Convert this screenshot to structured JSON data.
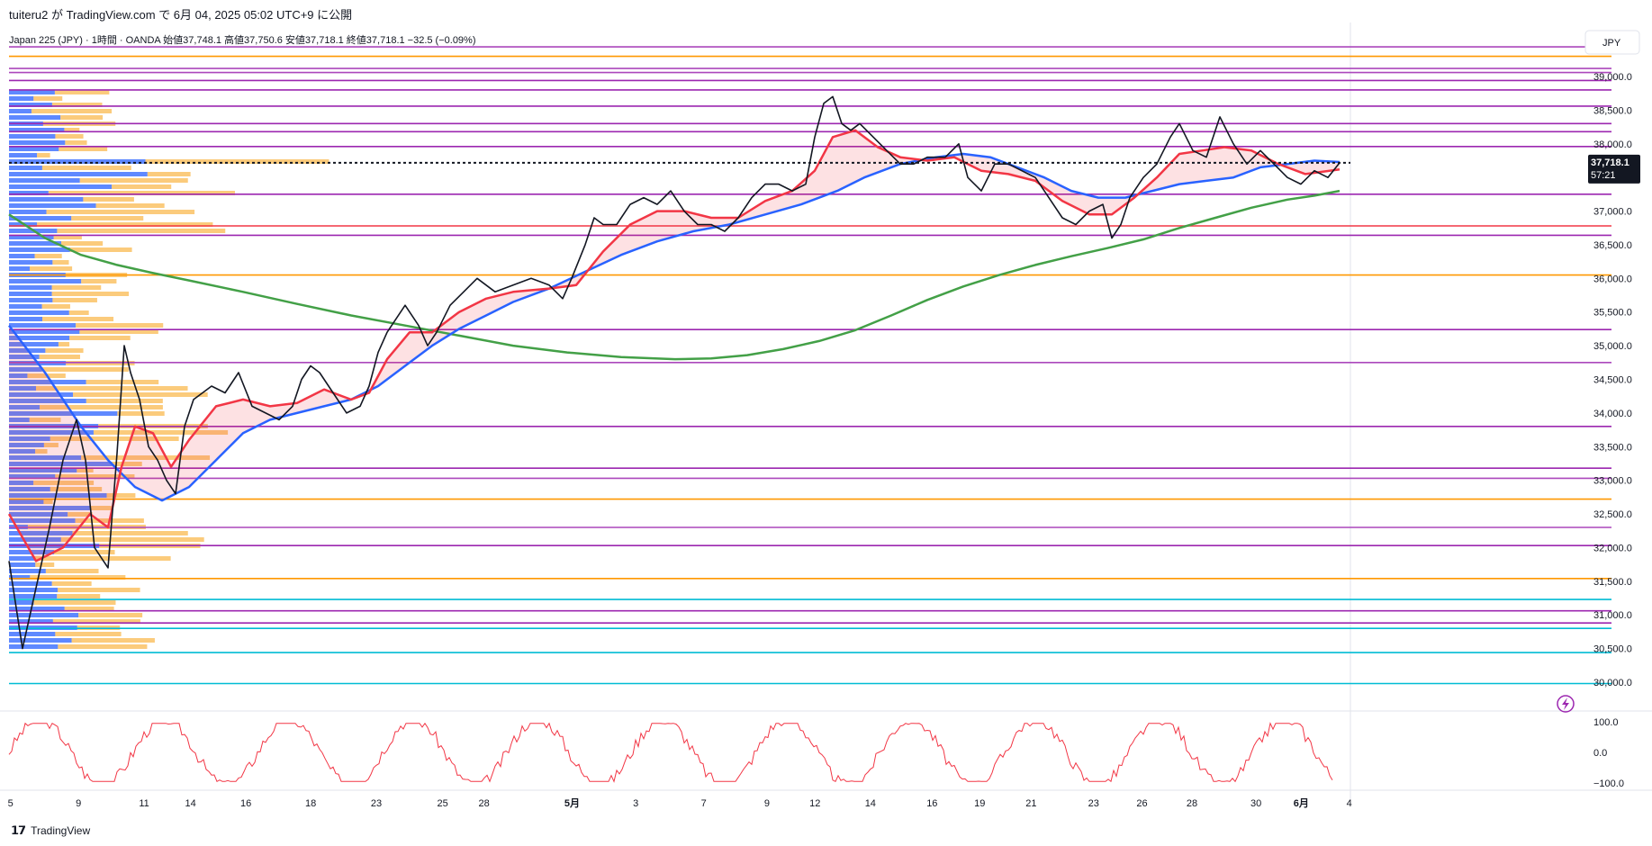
{
  "header": {
    "publish_line": "tuiteru2 が TradingView.com で 6月 04, 2025 05:02 UTC+9 に公開"
  },
  "legend": {
    "line": "Japan 225 (JPY) · 1時間 · OANDA  始値37,748.1  高値37,750.6  安値37,718.1  終値37,718.1  −32.5 (−0.09%)"
  },
  "axis": {
    "currency": "JPY",
    "price_ticks": [
      "39,000.0",
      "38,500.0",
      "38,000.0",
      "37,500.0",
      "37,000.0",
      "36,500.0",
      "36,000.0",
      "35,500.0",
      "35,000.0",
      "34,500.0",
      "34,000.0",
      "33,500.0",
      "33,000.0",
      "32,500.0",
      "32,000.0",
      "31,500.0",
      "31,000.0",
      "30,500.0",
      "30,000.0"
    ],
    "osc_ticks": [
      "100.0",
      "0.0",
      "−100.0"
    ],
    "time_ticks": [
      "5",
      "9",
      "11",
      "14",
      "16",
      "18",
      "23",
      "25",
      "28",
      "5月",
      "3",
      "7",
      "9",
      "12",
      "14",
      "16",
      "19",
      "21",
      "23",
      "26",
      "28",
      "30",
      "6月",
      "4"
    ],
    "current_price_label": "37,718.1",
    "countdown_label": "57:21"
  },
  "footer": {
    "logo_text": "TradingView"
  },
  "colors": {
    "price_line": "#131722",
    "ema_fast": "#f23645",
    "ema_mid": "#2962ff",
    "sma_long": "#43a047",
    "volume_profile_up": "#2962ff",
    "volume_profile_down": "#f9a825",
    "hline_purple": "#9c27b0",
    "hline_orange": "#ff9800",
    "hline_cyan": "#00bcd4",
    "hline_red": "#f23645",
    "oscillator": "#f23645"
  },
  "chart_data": {
    "type": "line",
    "title": "Japan 225 (JPY) · 1時間 · OANDA",
    "y_axis_range": [
      29750,
      39500
    ],
    "oscillator_range": [
      -100,
      100
    ],
    "horizontal_levels": [
      {
        "price": 39440,
        "color": "#ab47bc"
      },
      {
        "price": 39300,
        "color": "#ff9800"
      },
      {
        "price": 39120,
        "color": "#ab47bc"
      },
      {
        "price": 39060,
        "color": "#ab47bc"
      },
      {
        "price": 38940,
        "color": "#9c27b0"
      },
      {
        "price": 38800,
        "color": "#9c27b0"
      },
      {
        "price": 38560,
        "color": "#9c27b0"
      },
      {
        "price": 38300,
        "color": "#9c27b0"
      },
      {
        "price": 38180,
        "color": "#9c27b0"
      },
      {
        "price": 37960,
        "color": "#9c27b0"
      },
      {
        "price": 37250,
        "color": "#9c27b0"
      },
      {
        "price": 36780,
        "color": "#f23645"
      },
      {
        "price": 36640,
        "color": "#9c27b0"
      },
      {
        "price": 36050,
        "color": "#ff9800"
      },
      {
        "price": 35240,
        "color": "#9c27b0"
      },
      {
        "price": 34750,
        "color": "#ab47bc"
      },
      {
        "price": 33800,
        "color": "#9c27b0"
      },
      {
        "price": 33180,
        "color": "#9c27b0"
      },
      {
        "price": 33030,
        "color": "#ab47bc"
      },
      {
        "price": 32720,
        "color": "#ff9800"
      },
      {
        "price": 32300,
        "color": "#ab47bc"
      },
      {
        "price": 32030,
        "color": "#9c27b0"
      },
      {
        "price": 31540,
        "color": "#ff9800"
      },
      {
        "price": 31230,
        "color": "#00bcd4"
      },
      {
        "price": 31060,
        "color": "#9c27b0"
      },
      {
        "price": 30880,
        "color": "#9c27b0"
      },
      {
        "price": 30800,
        "color": "#00bcd4"
      },
      {
        "price": 30440,
        "color": "#00bcd4"
      },
      {
        "price": 29980,
        "color": "#00bcd4"
      }
    ],
    "series": [
      {
        "color": "#131722",
        "values": [
          [
            0,
            31800
          ],
          [
            15,
            30500
          ],
          [
            30,
            31400
          ],
          [
            45,
            32300
          ],
          [
            60,
            33300
          ],
          [
            75,
            33900
          ],
          [
            85,
            33300
          ],
          [
            95,
            32000
          ],
          [
            110,
            31700
          ],
          [
            120,
            33400
          ],
          [
            128,
            35000
          ],
          [
            135,
            34600
          ],
          [
            145,
            34200
          ],
          [
            155,
            33500
          ],
          [
            165,
            33300
          ],
          [
            175,
            33000
          ],
          [
            185,
            32800
          ],
          [
            195,
            33800
          ],
          [
            205,
            34200
          ],
          [
            215,
            34300
          ],
          [
            225,
            34400
          ],
          [
            240,
            34300
          ],
          [
            255,
            34600
          ],
          [
            270,
            34100
          ],
          [
            285,
            34000
          ],
          [
            300,
            33900
          ],
          [
            315,
            34100
          ],
          [
            325,
            34500
          ],
          [
            335,
            34700
          ],
          [
            345,
            34600
          ],
          [
            360,
            34300
          ],
          [
            375,
            34000
          ],
          [
            390,
            34100
          ],
          [
            400,
            34400
          ],
          [
            410,
            34900
          ],
          [
            420,
            35200
          ],
          [
            430,
            35400
          ],
          [
            440,
            35600
          ],
          [
            455,
            35300
          ],
          [
            465,
            35000
          ],
          [
            475,
            35200
          ],
          [
            490,
            35600
          ],
          [
            505,
            35800
          ],
          [
            520,
            36000
          ],
          [
            540,
            35800
          ],
          [
            560,
            35900
          ],
          [
            580,
            36000
          ],
          [
            600,
            35900
          ],
          [
            615,
            35700
          ],
          [
            625,
            36000
          ],
          [
            640,
            36500
          ],
          [
            650,
            36900
          ],
          [
            660,
            36800
          ],
          [
            675,
            36800
          ],
          [
            690,
            37100
          ],
          [
            705,
            37200
          ],
          [
            720,
            37100
          ],
          [
            735,
            37300
          ],
          [
            750,
            37000
          ],
          [
            765,
            36800
          ],
          [
            780,
            36800
          ],
          [
            795,
            36700
          ],
          [
            810,
            36900
          ],
          [
            825,
            37200
          ],
          [
            840,
            37400
          ],
          [
            855,
            37400
          ],
          [
            870,
            37300
          ],
          [
            885,
            37400
          ],
          [
            895,
            38100
          ],
          [
            905,
            38600
          ],
          [
            915,
            38700
          ],
          [
            925,
            38300
          ],
          [
            935,
            38200
          ],
          [
            945,
            38300
          ],
          [
            960,
            38100
          ],
          [
            975,
            37900
          ],
          [
            990,
            37700
          ],
          [
            1005,
            37700
          ],
          [
            1020,
            37800
          ],
          [
            1040,
            37800
          ],
          [
            1055,
            38000
          ],
          [
            1065,
            37500
          ],
          [
            1080,
            37300
          ],
          [
            1095,
            37700
          ],
          [
            1110,
            37700
          ],
          [
            1125,
            37600
          ],
          [
            1140,
            37500
          ],
          [
            1155,
            37200
          ],
          [
            1170,
            36900
          ],
          [
            1185,
            36800
          ],
          [
            1200,
            37000
          ],
          [
            1215,
            37100
          ],
          [
            1225,
            36600
          ],
          [
            1235,
            36800
          ],
          [
            1245,
            37200
          ],
          [
            1260,
            37500
          ],
          [
            1275,
            37700
          ],
          [
            1290,
            38100
          ],
          [
            1300,
            38300
          ],
          [
            1315,
            37900
          ],
          [
            1330,
            37800
          ],
          [
            1345,
            38400
          ],
          [
            1360,
            38000
          ],
          [
            1375,
            37700
          ],
          [
            1390,
            37900
          ],
          [
            1405,
            37700
          ],
          [
            1420,
            37500
          ],
          [
            1435,
            37400
          ],
          [
            1450,
            37600
          ],
          [
            1465,
            37500
          ],
          [
            1478,
            37718
          ]
        ]
      },
      {
        "color": "#f23645",
        "values": [
          [
            0,
            32500
          ],
          [
            30,
            31800
          ],
          [
            60,
            32000
          ],
          [
            90,
            32500
          ],
          [
            110,
            32300
          ],
          [
            125,
            33200
          ],
          [
            140,
            33800
          ],
          [
            160,
            33700
          ],
          [
            180,
            33200
          ],
          [
            200,
            33600
          ],
          [
            230,
            34100
          ],
          [
            260,
            34200
          ],
          [
            290,
            34100
          ],
          [
            320,
            34150
          ],
          [
            350,
            34350
          ],
          [
            380,
            34200
          ],
          [
            400,
            34300
          ],
          [
            420,
            34800
          ],
          [
            445,
            35200
          ],
          [
            470,
            35200
          ],
          [
            500,
            35500
          ],
          [
            530,
            35700
          ],
          [
            560,
            35800
          ],
          [
            600,
            35850
          ],
          [
            630,
            35900
          ],
          [
            660,
            36400
          ],
          [
            690,
            36800
          ],
          [
            720,
            37000
          ],
          [
            750,
            37000
          ],
          [
            780,
            36900
          ],
          [
            810,
            36900
          ],
          [
            840,
            37150
          ],
          [
            870,
            37300
          ],
          [
            895,
            37600
          ],
          [
            915,
            38100
          ],
          [
            940,
            38200
          ],
          [
            965,
            37950
          ],
          [
            990,
            37800
          ],
          [
            1020,
            37750
          ],
          [
            1050,
            37800
          ],
          [
            1080,
            37600
          ],
          [
            1110,
            37550
          ],
          [
            1140,
            37450
          ],
          [
            1170,
            37150
          ],
          [
            1200,
            36950
          ],
          [
            1225,
            36950
          ],
          [
            1250,
            37200
          ],
          [
            1275,
            37500
          ],
          [
            1300,
            37850
          ],
          [
            1325,
            37900
          ],
          [
            1350,
            37950
          ],
          [
            1380,
            37900
          ],
          [
            1410,
            37700
          ],
          [
            1440,
            37550
          ],
          [
            1478,
            37620
          ]
        ]
      },
      {
        "color": "#2962ff",
        "values": [
          [
            0,
            35300
          ],
          [
            40,
            34600
          ],
          [
            80,
            33800
          ],
          [
            110,
            33300
          ],
          [
            140,
            32900
          ],
          [
            170,
            32700
          ],
          [
            200,
            32900
          ],
          [
            230,
            33300
          ],
          [
            260,
            33700
          ],
          [
            290,
            33900
          ],
          [
            320,
            34000
          ],
          [
            350,
            34100
          ],
          [
            380,
            34200
          ],
          [
            410,
            34400
          ],
          [
            440,
            34700
          ],
          [
            470,
            35000
          ],
          [
            500,
            35250
          ],
          [
            530,
            35450
          ],
          [
            560,
            35650
          ],
          [
            600,
            35850
          ],
          [
            640,
            36100
          ],
          [
            680,
            36350
          ],
          [
            720,
            36550
          ],
          [
            760,
            36700
          ],
          [
            800,
            36800
          ],
          [
            840,
            36950
          ],
          [
            880,
            37100
          ],
          [
            920,
            37300
          ],
          [
            950,
            37500
          ],
          [
            990,
            37700
          ],
          [
            1030,
            37800
          ],
          [
            1060,
            37850
          ],
          [
            1090,
            37800
          ],
          [
            1120,
            37650
          ],
          [
            1150,
            37500
          ],
          [
            1180,
            37300
          ],
          [
            1210,
            37200
          ],
          [
            1240,
            37200
          ],
          [
            1270,
            37300
          ],
          [
            1300,
            37400
          ],
          [
            1330,
            37450
          ],
          [
            1360,
            37500
          ],
          [
            1390,
            37650
          ],
          [
            1420,
            37700
          ],
          [
            1450,
            37750
          ],
          [
            1478,
            37730
          ]
        ]
      },
      {
        "color": "#43a047",
        "values": [
          [
            0,
            36950
          ],
          [
            40,
            36600
          ],
          [
            80,
            36350
          ],
          [
            120,
            36200
          ],
          [
            160,
            36080
          ],
          [
            200,
            35970
          ],
          [
            260,
            35800
          ],
          [
            320,
            35620
          ],
          [
            380,
            35450
          ],
          [
            440,
            35300
          ],
          [
            500,
            35150
          ],
          [
            560,
            35000
          ],
          [
            620,
            34900
          ],
          [
            680,
            34830
          ],
          [
            740,
            34800
          ],
          [
            780,
            34810
          ],
          [
            820,
            34860
          ],
          [
            860,
            34950
          ],
          [
            900,
            35070
          ],
          [
            940,
            35230
          ],
          [
            980,
            35450
          ],
          [
            1020,
            35680
          ],
          [
            1060,
            35880
          ],
          [
            1100,
            36050
          ],
          [
            1140,
            36200
          ],
          [
            1180,
            36330
          ],
          [
            1220,
            36450
          ],
          [
            1260,
            36580
          ],
          [
            1300,
            36750
          ],
          [
            1340,
            36900
          ],
          [
            1380,
            37050
          ],
          [
            1420,
            37170
          ],
          [
            1450,
            37230
          ],
          [
            1478,
            37300
          ]
        ]
      }
    ],
    "oscillator": {
      "color": "#f23645",
      "note_levels": [
        100,
        0,
        -100
      ]
    }
  }
}
